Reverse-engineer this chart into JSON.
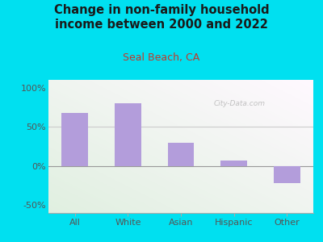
{
  "title": "Change in non-family household\nincome between 2000 and 2022",
  "subtitle": "Seal Beach, CA",
  "categories": [
    "All",
    "White",
    "Asian",
    "Hispanic",
    "Other"
  ],
  "values": [
    68,
    80,
    30,
    7,
    -22
  ],
  "bar_color": "#b39ddb",
  "bar_width": 0.5,
  "ylim": [
    -60,
    110
  ],
  "yticks": [
    -50,
    0,
    50,
    100
  ],
  "ytick_labels": [
    "-50%",
    "0%",
    "50%",
    "100%"
  ],
  "background_outer": "#00e0f0",
  "title_color": "#1a1a1a",
  "subtitle_color": "#c0392b",
  "axis_label_color": "#555555",
  "watermark": "City-Data.com",
  "title_fontsize": 10.5,
  "subtitle_fontsize": 9,
  "tick_fontsize": 8
}
